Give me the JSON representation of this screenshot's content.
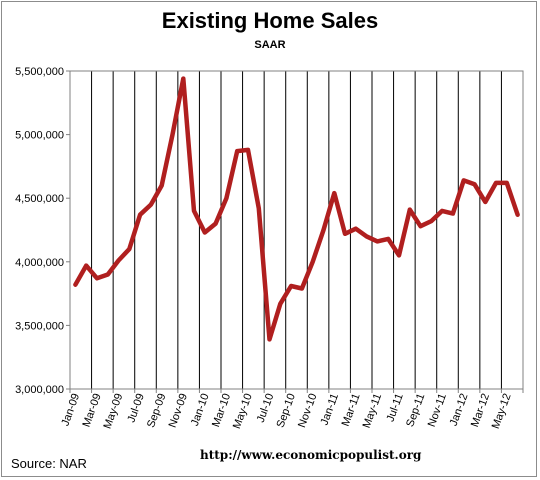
{
  "chart_data": {
    "type": "line",
    "title": "Existing Home Sales",
    "subtitle": "SAAR",
    "source": "Source:  NAR",
    "url": "http://www.economicpopulist.org",
    "xlabel": "",
    "ylabel": "",
    "ylim": [
      3000000,
      5500000
    ],
    "yticks": [
      3000000,
      3500000,
      4000000,
      4500000,
      5000000,
      5500000
    ],
    "ytick_labels": [
      "3,000,000",
      "3,500,000",
      "4,000,000",
      "4,500,000",
      "5,000,000",
      "5,500,000"
    ],
    "grid": "vertical",
    "x": [
      "Jan-09",
      "Feb-09",
      "Mar-09",
      "Apr-09",
      "May-09",
      "Jun-09",
      "Jul-09",
      "Aug-09",
      "Sep-09",
      "Oct-09",
      "Nov-09",
      "Dec-09",
      "Jan-10",
      "Feb-10",
      "Mar-10",
      "Apr-10",
      "May-10",
      "Jun-10",
      "Jul-10",
      "Aug-10",
      "Sep-10",
      "Oct-10",
      "Nov-10",
      "Dec-10",
      "Jan-11",
      "Feb-11",
      "Mar-11",
      "Apr-11",
      "May-11",
      "Jun-11",
      "Jul-11",
      "Aug-11",
      "Sep-11",
      "Oct-11",
      "Nov-11",
      "Dec-11",
      "Jan-12",
      "Feb-12",
      "Mar-12",
      "Apr-12",
      "May-12",
      "Jun-12"
    ],
    "xtick_labels": [
      "Jan-09",
      "Mar-09",
      "May-09",
      "Jul-09",
      "Sep-09",
      "Nov-09",
      "Jan-10",
      "Mar-10",
      "May-10",
      "Jul-10",
      "Sep-10",
      "Nov-10",
      "Jan-11",
      "Mar-11",
      "May-11",
      "Jul-11",
      "Sep-11",
      "Nov-11",
      "Jan-12",
      "Mar-12",
      "May-12"
    ],
    "series": [
      {
        "color": "#b01f1f",
        "values": [
          3820000,
          3970000,
          3870000,
          3900000,
          4010000,
          4100000,
          4370000,
          4450000,
          4600000,
          5000000,
          5440000,
          4400000,
          4230000,
          4300000,
          4500000,
          4870000,
          4880000,
          4420000,
          3390000,
          3670000,
          3810000,
          3790000,
          4000000,
          4250000,
          4540000,
          4220000,
          4260000,
          4200000,
          4160000,
          4180000,
          4050000,
          4410000,
          4280000,
          4320000,
          4400000,
          4380000,
          4640000,
          4610000,
          4470000,
          4620000,
          4620000,
          4370000
        ]
      }
    ]
  }
}
